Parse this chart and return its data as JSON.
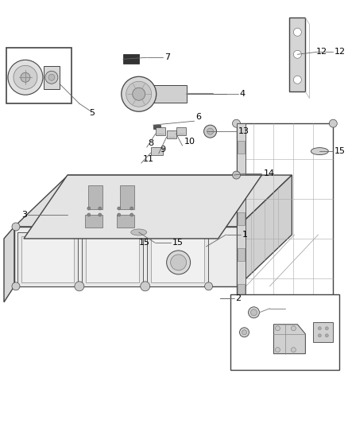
{
  "background_color": "#ffffff",
  "line_color": "#444444",
  "label_color": "#000000",
  "figure_width": 4.38,
  "figure_height": 5.33,
  "dpi": 100,
  "lw_main": 1.0,
  "lw_thin": 0.6,
  "lw_thick": 1.4,
  "gray_light": "#e8e8e8",
  "gray_mid": "#cccccc",
  "gray_dark": "#999999",
  "gray_fill": "#d8d8d8"
}
